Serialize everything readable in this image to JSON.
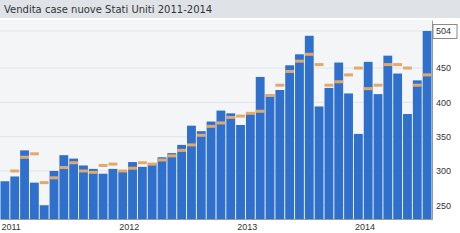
{
  "chart_data": {
    "type": "bar",
    "title": "Vendita case nuove Stati Uniti 2011-2014",
    "categories": [
      "2011",
      null,
      null,
      null,
      null,
      null,
      null,
      null,
      null,
      null,
      null,
      null,
      "2012",
      null,
      null,
      null,
      null,
      null,
      null,
      null,
      null,
      null,
      null,
      null,
      "2013",
      null,
      null,
      null,
      null,
      null,
      null,
      null,
      null,
      null,
      null,
      null,
      "2014",
      null,
      null,
      null,
      null,
      null,
      null,
      null
    ],
    "series": [
      {
        "type": "bar",
        "color": "#2f70cc",
        "values": [
          285,
          292,
          330,
          283,
          250,
          300,
          323,
          318,
          308,
          303,
          296,
          303,
          299,
          313,
          306,
          311,
          320,
          326,
          338,
          366,
          358,
          372,
          388,
          384,
          367,
          384,
          437,
          412,
          418,
          454,
          470,
          497,
          394,
          421,
          458,
          413,
          354,
          459,
          412,
          468,
          442,
          383,
          432,
          504
        ]
      },
      {
        "type": "scatter",
        "marker": "dash",
        "color": "#e3a96b",
        "values": [
          null,
          300,
          320,
          325,
          283,
          290,
          305,
          312,
          300,
          298,
          308,
          310,
          300,
          304,
          312,
          310,
          316,
          322,
          330,
          338,
          352,
          365,
          370,
          378,
          380,
          384,
          387,
          410,
          425,
          445,
          460,
          470,
          455,
          425,
          430,
          440,
          450,
          420,
          425,
          455,
          455,
          450,
          425,
          440
        ]
      }
    ],
    "ylim": [
      230,
      520
    ],
    "yticks": [
      250,
      300,
      350,
      400,
      450,
      504
    ],
    "grid": true
  }
}
